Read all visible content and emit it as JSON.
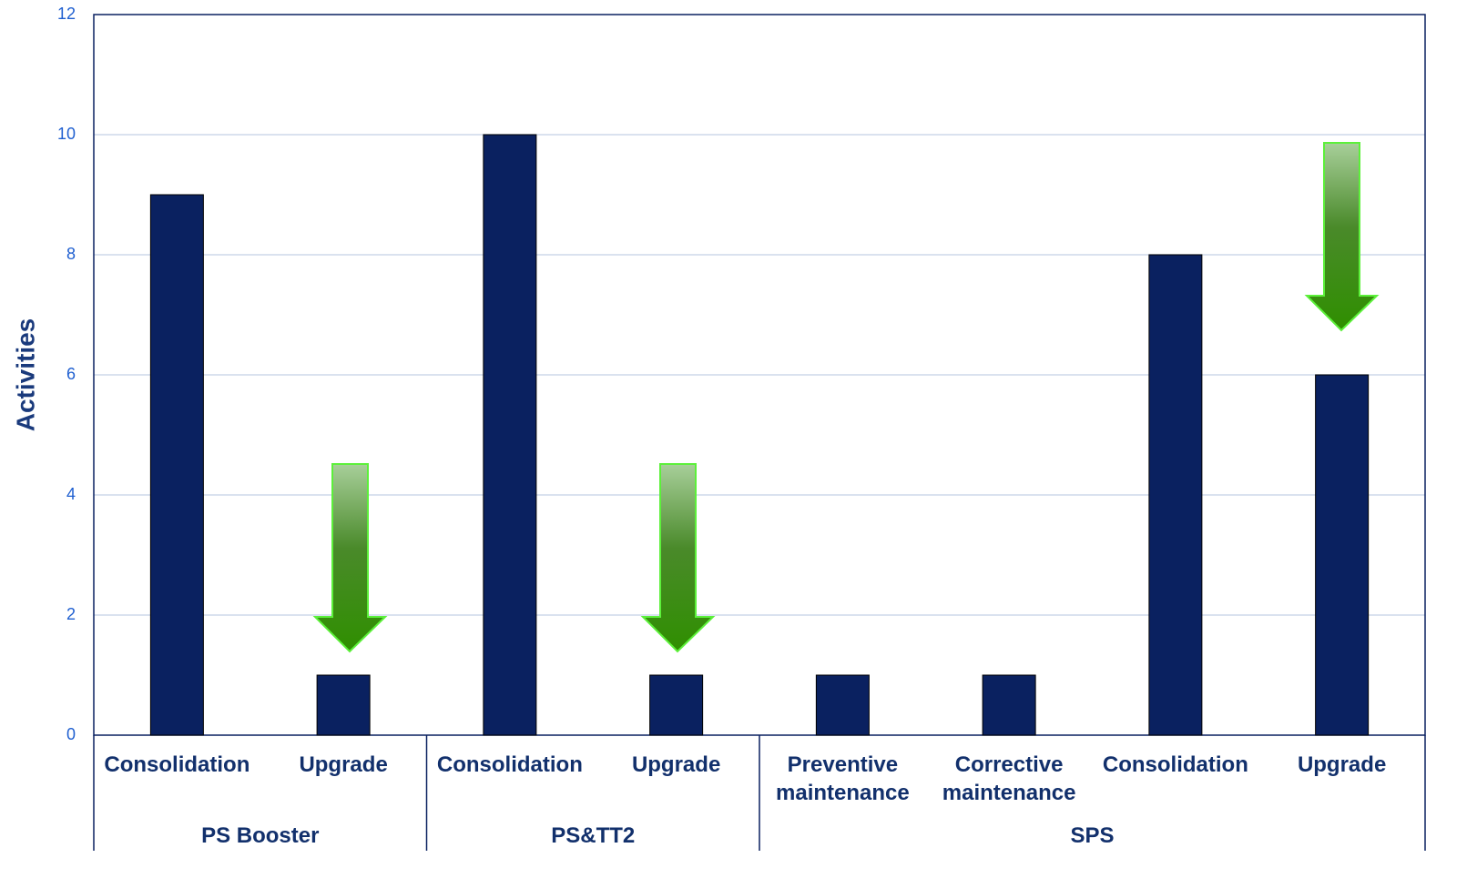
{
  "chart_data": {
    "type": "bar",
    "y_label": "Activities",
    "groups": [
      {
        "name": "PS Booster",
        "categories": [
          "Consolidation",
          "Upgrade"
        ]
      },
      {
        "name": "PS&TT2",
        "categories": [
          "Consolidation",
          "Upgrade"
        ]
      },
      {
        "name": "SPS",
        "categories": [
          "Preventive maintenance",
          "Corrective maintenance",
          "Consolidation",
          "Upgrade"
        ]
      }
    ],
    "values": [
      9,
      1,
      10,
      1,
      1,
      1,
      8,
      6
    ],
    "color": "#0a2160",
    "ylim": [
      0,
      12
    ],
    "yticks": [
      0,
      2,
      4,
      6,
      8,
      10,
      12
    ],
    "grid": true
  }
}
